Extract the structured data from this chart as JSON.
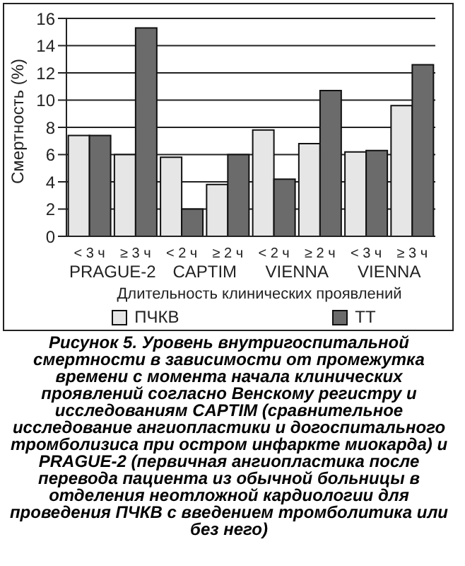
{
  "chart_data": {
    "type": "bar",
    "title": "Рисунок 5. Уровень внутригоспитальной смертности в зависимости от промежутка времени с момента начала клинических проявлений согласно Венскому регистру и исследованиям CAPTIM (сравнительное исследование ангиопластики и догоспитального тромболизиса при остром инфаркте миокарда) и PRAGUE-2 (первичная ангиопластика после перевода пациента из обычной больницы в отделения неотложной кардиологии для проведения ПЧКВ с введением тромболитика или без него)",
    "xlabel": "Длительность клинических проявлений",
    "ylabel": "Смертность (%)",
    "categories": [
      "< 3 ч",
      "≥ 3 ч",
      "< 2 ч",
      "≥ 2 ч",
      "< 2 ч",
      "≥ 2 ч",
      "< 3 ч",
      "≥ 3 ч"
    ],
    "annotations": [
      "PRAGUE-2",
      "CAPTIM",
      "VIENNA",
      "VIENNA"
    ],
    "series": [
      {
        "name": "ПЧКВ",
        "color": "#e6e6e6",
        "values": [
          7.4,
          6.0,
          5.8,
          3.8,
          7.8,
          6.8,
          6.2,
          9.6
        ]
      },
      {
        "name": "ТТ",
        "color": "#6b6b6b",
        "values": [
          7.4,
          15.3,
          2.0,
          6.0,
          4.2,
          10.7,
          6.3,
          12.6
        ]
      }
    ],
    "ylim": [
      0,
      16
    ],
    "yticks": [
      0,
      2,
      4,
      6,
      8,
      10,
      12,
      14,
      16
    ],
    "grid": "y",
    "legend": "bottom"
  }
}
